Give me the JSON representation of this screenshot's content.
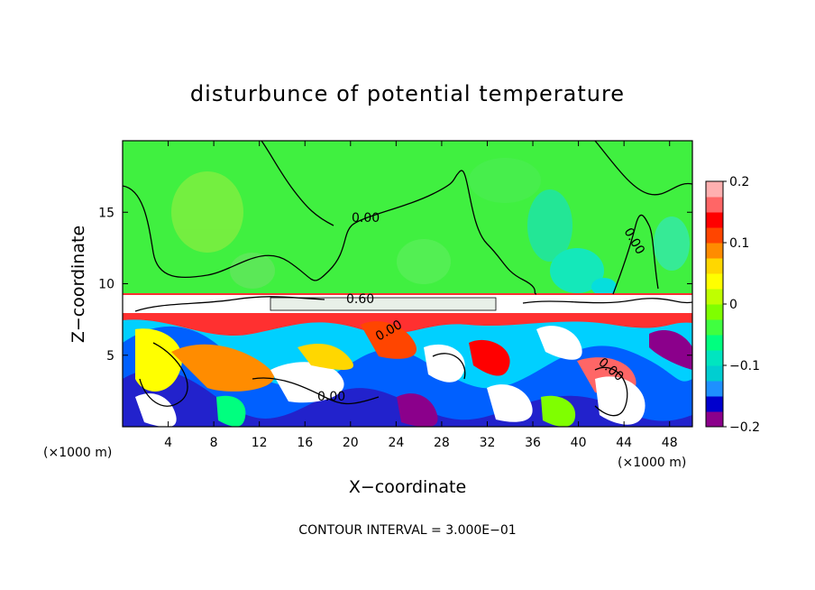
{
  "chart_data": {
    "type": "heatmap",
    "title": "disturbunce of potential temperature",
    "xlabel": "X−coordinate",
    "ylabel": "Z−coordinate",
    "x_unit": "(×1000 m)",
    "z_unit": "(×1000 m)",
    "xlim": [
      0,
      50
    ],
    "ylim": [
      0,
      20
    ],
    "x_ticks": [
      4,
      8,
      12,
      16,
      20,
      24,
      28,
      32,
      36,
      40,
      44,
      48
    ],
    "x_tick_labels": [
      "4",
      "8",
      "12",
      "16",
      "20",
      "24",
      "28",
      "32",
      "36",
      "40",
      "44",
      "48"
    ],
    "y_ticks": [
      5,
      10,
      15
    ],
    "y_tick_labels": [
      "5",
      "10",
      "15"
    ],
    "colorbar": {
      "range": [
        -0.2,
        0.2
      ],
      "ticks": [
        0.2,
        0.1,
        0,
        -0.1,
        -0.2
      ],
      "tick_labels": [
        "0.2",
        "0.1",
        "0",
        "−0.1",
        "−0.2"
      ],
      "colors": [
        "#8b008b",
        "#0000cd",
        "#1e90ff",
        "#00ced1",
        "#00e5c0",
        "#00ff7f",
        "#40ff40",
        "#7fff00",
        "#bfff00",
        "#ffff00",
        "#ffd700",
        "#ff8c00",
        "#ff4500",
        "#ff0000",
        "#ff6666",
        "#ffb0b0"
      ]
    },
    "contour_interval_text": "CONTOUR INTERVAL = 3.000E−01",
    "contour_labels": [
      {
        "text": "0.00",
        "x": 17.8,
        "z": 14.8
      },
      {
        "text": "0.60",
        "x": 17.2,
        "z": 8.9
      },
      {
        "text": "0.00",
        "x": 43.6,
        "z": 12.9
      },
      {
        "text": "0.00",
        "x": 21.2,
        "z": 6.4
      },
      {
        "text": "0.00",
        "x": 17.9,
        "z": 2.2
      },
      {
        "text": "0.00",
        "x": 42.0,
        "z": 4.9
      }
    ]
  }
}
